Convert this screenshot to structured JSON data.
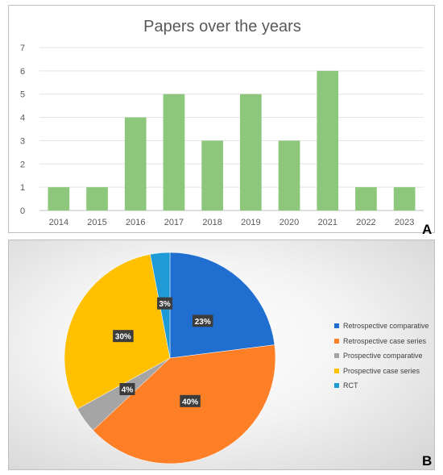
{
  "panels": {
    "a_letter": "A",
    "b_letter": "B"
  },
  "chart_data": [
    {
      "type": "bar",
      "title": "Papers over the years",
      "categories": [
        "2014",
        "2015",
        "2016",
        "2017",
        "2018",
        "2019",
        "2020",
        "2021",
        "2022",
        "2023"
      ],
      "values": [
        1,
        1,
        4,
        5,
        3,
        5,
        3,
        6,
        1,
        1
      ],
      "yticks": [
        0,
        1,
        2,
        3,
        4,
        5,
        6,
        7
      ],
      "ylim": [
        0,
        7
      ],
      "grid": true,
      "bar_color": "#8dc77b"
    },
    {
      "type": "pie",
      "labels": [
        "Retrospective comparative",
        "Retrospective case series",
        "Prospective comparative",
        "Prospective case series",
        "RCT"
      ],
      "values": [
        23,
        40,
        4,
        30,
        3
      ],
      "value_labels": [
        "23%",
        "40%",
        "4%",
        "30%",
        "3%"
      ],
      "colors": [
        "#1f6ed0",
        "#ff7f27",
        "#a5a5a5",
        "#ffc000",
        "#1e9ad6"
      ],
      "legend_position": "right"
    }
  ]
}
